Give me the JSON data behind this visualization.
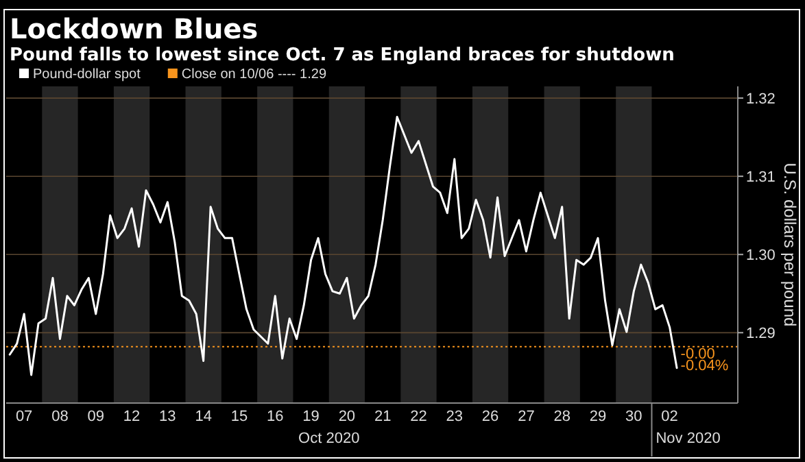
{
  "chart_data": {
    "type": "line",
    "title": "Lockdown Blues",
    "subtitle": "Pound falls to lowest since Oct. 7 as England braces for shutdown",
    "ylabel": "U.S. dollars per pound",
    "categories": [
      null,
      null,
      "07",
      null,
      null,
      null,
      null,
      "08",
      null,
      null,
      null,
      null,
      "09",
      null,
      null,
      null,
      null,
      "12",
      null,
      null,
      null,
      null,
      "13",
      null,
      null,
      null,
      null,
      "14",
      null,
      null,
      null,
      null,
      "15",
      null,
      null,
      null,
      null,
      "16",
      null,
      null,
      null,
      null,
      "19",
      null,
      null,
      null,
      null,
      "20",
      null,
      null,
      null,
      null,
      "21",
      null,
      null,
      null,
      null,
      "22",
      null,
      null,
      null,
      null,
      "23",
      null,
      null,
      null,
      null,
      "26",
      null,
      null,
      null,
      null,
      "27",
      null,
      null,
      null,
      null,
      "28",
      null,
      null,
      null,
      null,
      "29",
      null,
      null,
      null,
      null,
      "30",
      null,
      null,
      null,
      null,
      "02",
      null,
      null,
      null,
      null,
      null,
      null,
      null,
      null,
      null
    ],
    "ylim": [
      1.281,
      1.3215
    ],
    "yticks": [
      1.29,
      {
        "value": 1.3,
        "label": "1.30"
      },
      1.31,
      1.32
    ],
    "grid": "y",
    "legend": "top left",
    "series": [
      {
        "name": "Pound-dollar spot",
        "color": "#ffffff",
        "values": [
          1.2872,
          1.2886,
          1.2924,
          1.2846,
          1.2912,
          1.2918,
          1.297,
          1.2892,
          1.2947,
          1.2935,
          1.2955,
          1.297,
          1.2924,
          1.2975,
          1.305,
          1.3021,
          1.3033,
          1.3059,
          1.301,
          1.3082,
          1.3064,
          1.3041,
          1.3067,
          1.3016,
          1.2947,
          1.2941,
          1.2924,
          1.2864,
          1.3061,
          1.3033,
          1.3021,
          1.3021,
          1.2975,
          1.293,
          1.2904,
          1.2895,
          1.2886,
          1.2947,
          1.2867,
          1.2918,
          1.2892,
          1.2935,
          1.2993,
          1.3021,
          1.2975,
          1.2953,
          1.295,
          1.297,
          1.2918,
          1.2935,
          1.2947,
          1.2987,
          1.3044,
          1.3113,
          1.3176,
          1.3153,
          1.313,
          1.3145,
          1.3116,
          1.3087,
          1.3079,
          1.3053,
          1.3122,
          1.3021,
          1.3033,
          1.307,
          1.3044,
          1.2996,
          1.3073,
          1.2998,
          1.3021,
          1.3044,
          1.3004,
          1.3044,
          1.3079,
          1.305,
          1.3021,
          1.3061,
          1.2918,
          1.2993,
          1.2987,
          1.2996,
          1.3021,
          1.2941,
          1.2884,
          1.293,
          1.2901,
          1.2953,
          1.2987,
          1.2964,
          1.293,
          1.2935,
          1.2907,
          1.2855,
          null,
          null,
          null,
          null,
          null,
          null,
          null,
          null
        ]
      }
    ],
    "ref_lines": [
      {
        "axis": "y",
        "value": 1.2882,
        "label": "Close on 10/06 ---- 1.29",
        "color": "#f7941d",
        "line_style": "dotted"
      }
    ],
    "annotations": [
      "Oct 2020",
      "Nov 2020",
      {
        "text": "-0.00",
        "x": "02",
        "y": 1.2876
      },
      {
        "text": "-0.04%",
        "x": "02",
        "y": 1.2861
      }
    ]
  }
}
